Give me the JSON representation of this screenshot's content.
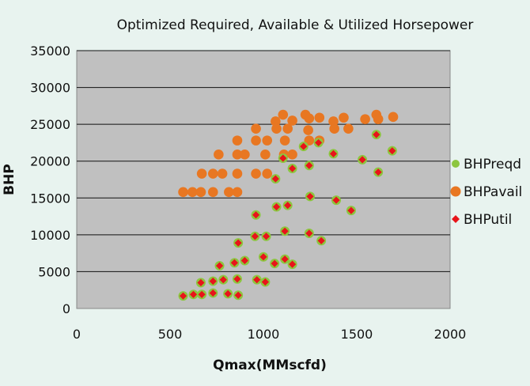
{
  "chart_data": {
    "type": "scatter",
    "title": "Optimized Required, Available & Utilized Horsepower",
    "xlabel": "Qmax(MMscfd)",
    "ylabel": "BHP",
    "xlim": [
      0,
      2000
    ],
    "ylim": [
      0,
      35000
    ],
    "xticks": [
      "0",
      "500",
      "1000",
      "1500",
      "2000"
    ],
    "yticks": [
      "0",
      "5000",
      "10000",
      "15000",
      "20000",
      "25000",
      "30000",
      "35000"
    ],
    "grid": true,
    "legend_position": "right",
    "plot_bg": "#c0c0c0",
    "series": [
      {
        "name": "BHPreqd",
        "marker": "circle",
        "color": "#8cc63f",
        "points": [
          [
            570,
            1700
          ],
          [
            625,
            1900
          ],
          [
            665,
            3500
          ],
          [
            670,
            1900
          ],
          [
            730,
            3700
          ],
          [
            730,
            2100
          ],
          [
            765,
            5800
          ],
          [
            785,
            3900
          ],
          [
            810,
            2000
          ],
          [
            845,
            6200
          ],
          [
            860,
            4000
          ],
          [
            865,
            8900
          ],
          [
            865,
            1800
          ],
          [
            900,
            6500
          ],
          [
            955,
            9800
          ],
          [
            960,
            12700
          ],
          [
            965,
            3900
          ],
          [
            1000,
            7000
          ],
          [
            1010,
            3600
          ],
          [
            1015,
            9800
          ],
          [
            1060,
            6100
          ],
          [
            1065,
            17600
          ],
          [
            1070,
            13800
          ],
          [
            1105,
            20400
          ],
          [
            1115,
            10500
          ],
          [
            1115,
            6700
          ],
          [
            1130,
            14000
          ],
          [
            1155,
            19000
          ],
          [
            1155,
            6000
          ],
          [
            1215,
            22000
          ],
          [
            1245,
            19400
          ],
          [
            1245,
            10200
          ],
          [
            1250,
            15200
          ],
          [
            1295,
            22500
          ],
          [
            1310,
            9200
          ],
          [
            1375,
            21000
          ],
          [
            1390,
            14700
          ],
          [
            1470,
            13300
          ],
          [
            1530,
            20200
          ],
          [
            1605,
            23600
          ],
          [
            1615,
            18500
          ],
          [
            1690,
            21400
          ]
        ]
      },
      {
        "name": "BHPavail",
        "marker": "circle",
        "color": "#e87722",
        "points": [
          [
            570,
            15800
          ],
          [
            620,
            15800
          ],
          [
            665,
            15800
          ],
          [
            670,
            18300
          ],
          [
            730,
            15800
          ],
          [
            730,
            18300
          ],
          [
            760,
            20900
          ],
          [
            780,
            18300
          ],
          [
            815,
            15800
          ],
          [
            860,
            20900
          ],
          [
            860,
            22800
          ],
          [
            860,
            18300
          ],
          [
            860,
            15800
          ],
          [
            900,
            20900
          ],
          [
            960,
            22800
          ],
          [
            960,
            24400
          ],
          [
            960,
            18300
          ],
          [
            1010,
            20900
          ],
          [
            1020,
            22800
          ],
          [
            1020,
            18300
          ],
          [
            1065,
            25400
          ],
          [
            1070,
            24400
          ],
          [
            1105,
            26300
          ],
          [
            1110,
            20900
          ],
          [
            1115,
            22800
          ],
          [
            1130,
            24400
          ],
          [
            1155,
            25500
          ],
          [
            1155,
            20900
          ],
          [
            1225,
            26300
          ],
          [
            1240,
            24200
          ],
          [
            1245,
            22800
          ],
          [
            1245,
            25800
          ],
          [
            1300,
            25900
          ],
          [
            1300,
            22800
          ],
          [
            1375,
            25400
          ],
          [
            1380,
            24400
          ],
          [
            1430,
            25900
          ],
          [
            1455,
            24400
          ],
          [
            1545,
            25700
          ],
          [
            1605,
            26300
          ],
          [
            1615,
            25700
          ],
          [
            1695,
            26000
          ]
        ]
      },
      {
        "name": "BHPutil",
        "marker": "diamond",
        "color": "#e8141a",
        "points": [
          [
            570,
            1700
          ],
          [
            625,
            1900
          ],
          [
            665,
            3500
          ],
          [
            670,
            1900
          ],
          [
            730,
            3700
          ],
          [
            730,
            2100
          ],
          [
            765,
            5800
          ],
          [
            785,
            3900
          ],
          [
            810,
            2000
          ],
          [
            845,
            6200
          ],
          [
            860,
            4000
          ],
          [
            865,
            8900
          ],
          [
            865,
            1800
          ],
          [
            900,
            6500
          ],
          [
            955,
            9800
          ],
          [
            960,
            12700
          ],
          [
            965,
            3900
          ],
          [
            1000,
            7000
          ],
          [
            1010,
            3600
          ],
          [
            1015,
            9800
          ],
          [
            1060,
            6100
          ],
          [
            1065,
            17600
          ],
          [
            1070,
            13800
          ],
          [
            1105,
            20400
          ],
          [
            1115,
            10500
          ],
          [
            1115,
            6700
          ],
          [
            1130,
            14000
          ],
          [
            1155,
            19000
          ],
          [
            1155,
            6000
          ],
          [
            1215,
            22000
          ],
          [
            1245,
            19400
          ],
          [
            1245,
            10200
          ],
          [
            1250,
            15200
          ],
          [
            1295,
            22500
          ],
          [
            1310,
            9200
          ],
          [
            1375,
            21000
          ],
          [
            1390,
            14700
          ],
          [
            1470,
            13300
          ],
          [
            1530,
            20200
          ],
          [
            1605,
            23600
          ],
          [
            1615,
            18500
          ],
          [
            1690,
            21400
          ]
        ]
      }
    ]
  }
}
